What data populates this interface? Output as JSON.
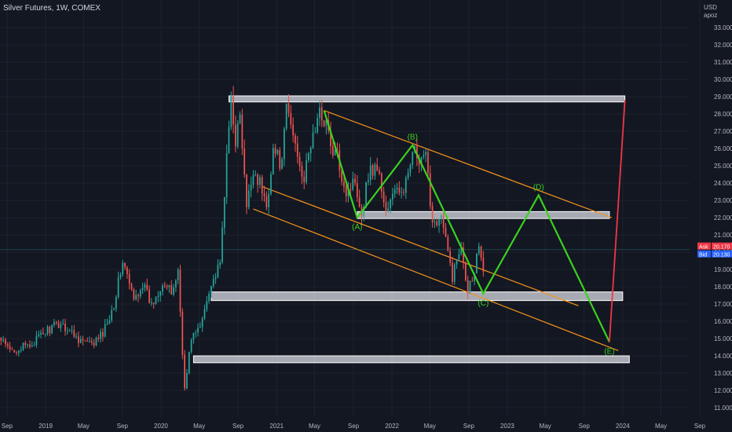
{
  "header": {
    "title": "Silver Futures, 1W, COMEX",
    "currency": "USD",
    "author": "apoz"
  },
  "quotes": {
    "ask_label": "Ask",
    "ask_value": "20.170",
    "bid_label": "Bid",
    "bid_value": "20.130"
  },
  "colors": {
    "background": "#131722",
    "up": "#26a69a",
    "down": "#ef5350",
    "wave": "#3bd11f",
    "channel": "#f7931a",
    "projection": "#f23645",
    "zone": "#d1d4dc",
    "wave_label": "#3bd11f"
  },
  "chart_data": {
    "type": "candlestick",
    "title": "Silver Futures, 1W, COMEX",
    "ylabel": "USD",
    "ylim": [
      10.5,
      34.6
    ],
    "y_ticks": [
      "11.000",
      "12.000",
      "13.000",
      "14.000",
      "15.000",
      "16.000",
      "17.000",
      "18.000",
      "19.000",
      "20.000",
      "21.000",
      "22.000",
      "23.000",
      "24.000",
      "25.000",
      "26.000",
      "27.000",
      "28.000",
      "29.000",
      "30.000",
      "31.000",
      "32.000",
      "33.000"
    ],
    "x_ticks": [
      "Sep",
      "2019",
      "May",
      "Sep",
      "2020",
      "May",
      "Sep",
      "2021",
      "May",
      "Sep",
      "2022",
      "May",
      "Sep",
      "2023",
      "May",
      "Sep",
      "2024",
      "May",
      "Sep"
    ],
    "x_tick_dates": [
      "2018-09-01",
      "2019-01-01",
      "2019-05-01",
      "2019-09-01",
      "2020-01-01",
      "2020-05-01",
      "2020-09-01",
      "2021-01-01",
      "2021-05-01",
      "2021-09-01",
      "2022-01-01",
      "2022-05-01",
      "2022-09-01",
      "2023-01-01",
      "2023-05-01",
      "2023-09-01",
      "2024-01-01",
      "2024-05-01",
      "2024-09-01"
    ],
    "price_path": [
      [
        "2018-08-06",
        15.0
      ],
      [
        "2018-09-10",
        14.3
      ],
      [
        "2018-11-12",
        14.6
      ],
      [
        "2019-01-07",
        15.5
      ],
      [
        "2019-02-18",
        15.9
      ],
      [
        "2019-04-15",
        15.0
      ],
      [
        "2019-05-27",
        14.6
      ],
      [
        "2019-07-01",
        15.3
      ],
      [
        "2019-08-05",
        17.0
      ],
      [
        "2019-09-02",
        19.5
      ],
      [
        "2019-10-07",
        17.2
      ],
      [
        "2019-11-04",
        18.2
      ],
      [
        "2019-12-02",
        16.9
      ],
      [
        "2020-01-06",
        18.3
      ],
      [
        "2020-02-03",
        17.6
      ],
      [
        "2020-02-24",
        18.9
      ],
      [
        "2020-03-16",
        12.0
      ],
      [
        "2020-04-06",
        15.1
      ],
      [
        "2020-05-04",
        15.6
      ],
      [
        "2020-06-01",
        17.9
      ],
      [
        "2020-07-06",
        19.2
      ],
      [
        "2020-07-20",
        23.5
      ],
      [
        "2020-08-10",
        29.0
      ],
      [
        "2020-08-24",
        26.5
      ],
      [
        "2020-09-07",
        27.8
      ],
      [
        "2020-09-28",
        22.5
      ],
      [
        "2020-10-19",
        24.8
      ],
      [
        "2020-11-09",
        24.0
      ],
      [
        "2020-11-30",
        22.6
      ],
      [
        "2020-12-21",
        26.0
      ],
      [
        "2021-01-18",
        25.0
      ],
      [
        "2021-02-01",
        28.5
      ],
      [
        "2021-02-22",
        26.8
      ],
      [
        "2021-03-29",
        24.2
      ],
      [
        "2021-04-19",
        26.3
      ],
      [
        "2021-05-17",
        28.0
      ],
      [
        "2021-06-07",
        27.6
      ],
      [
        "2021-06-21",
        26.0
      ],
      [
        "2021-07-12",
        25.5
      ],
      [
        "2021-08-09",
        23.5
      ],
      [
        "2021-09-06",
        24.2
      ],
      [
        "2021-09-27",
        22.2
      ],
      [
        "2021-10-18",
        24.6
      ],
      [
        "2021-11-15",
        25.0
      ],
      [
        "2021-12-13",
        22.3
      ],
      [
        "2022-01-17",
        23.8
      ],
      [
        "2022-02-07",
        23.2
      ],
      [
        "2022-03-07",
        26.2
      ],
      [
        "2022-03-28",
        25.0
      ],
      [
        "2022-04-18",
        25.5
      ],
      [
        "2022-05-09",
        21.8
      ],
      [
        "2022-06-06",
        22.0
      ],
      [
        "2022-07-11",
        18.6
      ],
      [
        "2022-08-08",
        20.5
      ],
      [
        "2022-08-29",
        17.8
      ],
      [
        "2022-09-19",
        19.0
      ],
      [
        "2022-10-03",
        20.6
      ],
      [
        "2022-10-17",
        19.2
      ]
    ],
    "channels": [
      {
        "name": "upper",
        "points": [
          [
            "2021-05-31",
            28.2
          ],
          [
            "2023-11-27",
            22.0
          ]
        ]
      },
      {
        "name": "middle",
        "points": [
          [
            "2020-11-16",
            23.8
          ],
          [
            "2023-08-14",
            16.9
          ]
        ]
      },
      {
        "name": "lower",
        "points": [
          [
            "2020-10-19",
            22.5
          ],
          [
            "2023-12-18",
            14.3
          ]
        ]
      }
    ],
    "zones": [
      {
        "from": "2020-08-03",
        "to": "2024-01-08",
        "low": 28.7,
        "high": 29.05
      },
      {
        "from": "2021-09-13",
        "to": "2023-11-20",
        "low": 21.95,
        "high": 22.35
      },
      {
        "from": "2020-06-08",
        "to": "2024-01-01",
        "low": 17.2,
        "high": 17.7
      },
      {
        "from": "2020-04-13",
        "to": "2024-01-22",
        "low": 13.6,
        "high": 14.0
      }
    ],
    "wave_path": [
      [
        "2021-05-31",
        28.2
      ],
      [
        "2021-09-13",
        22.0
      ],
      [
        "2022-03-07",
        26.2
      ],
      [
        "2022-10-17",
        17.6
      ],
      [
        "2023-04-10",
        23.3
      ],
      [
        "2023-11-20",
        14.8
      ]
    ],
    "wave_labels": [
      {
        "text": "(A)",
        "date": "2021-09-13",
        "value": 22.0,
        "pos": "below"
      },
      {
        "text": "(B)",
        "date": "2022-03-07",
        "value": 26.2,
        "pos": "above"
      },
      {
        "text": "(C)",
        "date": "2022-10-17",
        "value": 17.6,
        "pos": "below"
      },
      {
        "text": "(D)",
        "date": "2023-04-10",
        "value": 23.3,
        "pos": "above"
      },
      {
        "text": "(E)",
        "date": "2023-11-20",
        "value": 14.8,
        "pos": "below"
      }
    ],
    "projection": {
      "from": [
        "2023-11-20",
        14.8
      ],
      "to": [
        "2024-01-08",
        28.8
      ]
    },
    "last_price": 20.15
  }
}
